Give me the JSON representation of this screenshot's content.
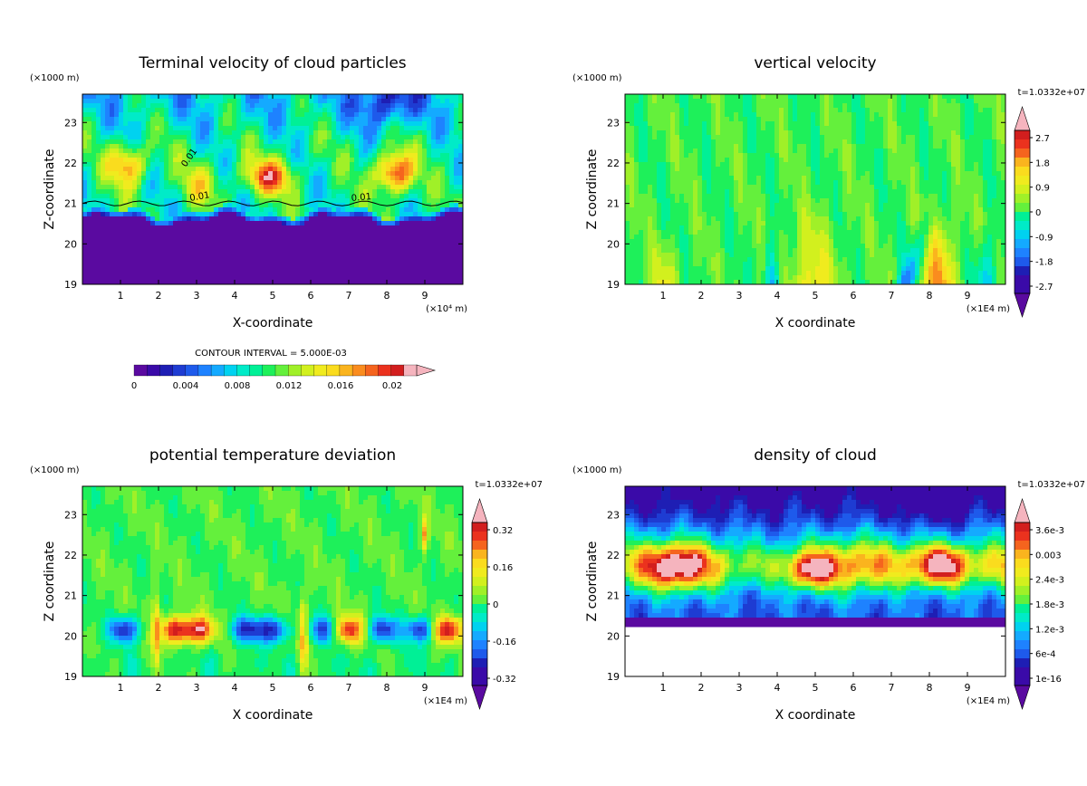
{
  "chart_data": [
    {
      "id": "p1",
      "type": "heatmap",
      "title": "Terminal velocity of cloud particles",
      "xlabel": "X-coordinate",
      "ylabel": "Z-coordinate",
      "yunit": "(×1000 m)",
      "xunit": "(×10⁴ m)",
      "xlim": [
        0,
        10
      ],
      "ylim": [
        19,
        23.7
      ],
      "xticks": [
        "1",
        "2",
        "3",
        "4",
        "5",
        "6",
        "7",
        "8",
        "9"
      ],
      "yticks": [
        "19",
        "20",
        "21",
        "22",
        "23"
      ],
      "contour_labels": [
        "0.01",
        "0.01",
        "0.01"
      ],
      "colorbar": {
        "orientation": "horizontal",
        "title": "CONTOUR INTERVAL = 5.000E-03",
        "ticks": [
          "0",
          "0.004",
          "0.008",
          "0.012",
          "0.016",
          "0.02"
        ],
        "levels": 22,
        "range": [
          0,
          0.021
        ]
      },
      "description_values": {
        "lower_layer_value": 0.0,
        "upper_layer_typical": 0.011,
        "core_max": 0.021
      }
    },
    {
      "id": "p2",
      "type": "heatmap",
      "title": "vertical velocity",
      "xlabel": "X coordinate",
      "ylabel": "Z coordinate",
      "yunit": "(×1000 m)",
      "xunit": "(×1E4 m)",
      "time_label": "t=1.0332e+07",
      "xlim": [
        0,
        10
      ],
      "ylim": [
        19,
        23.7
      ],
      "xticks": [
        "1",
        "2",
        "3",
        "4",
        "5",
        "6",
        "7",
        "8",
        "9"
      ],
      "yticks": [
        "19",
        "20",
        "21",
        "22",
        "23"
      ],
      "colorbar": {
        "orientation": "vertical",
        "ticks": [
          "2.7",
          "1.8",
          "0.9",
          "0",
          "-0.9",
          "-1.8",
          "-2.7"
        ],
        "range": [
          -3.2,
          3.2
        ]
      }
    },
    {
      "id": "p3",
      "type": "heatmap",
      "title": "potential temperature deviation",
      "xlabel": "X coordinate",
      "ylabel": "Z coordinate",
      "yunit": "(×1000 m)",
      "xunit": "(×1E4 m)",
      "time_label": "t=1.0332e+07",
      "xlim": [
        0,
        10
      ],
      "ylim": [
        19,
        23.7
      ],
      "xticks": [
        "1",
        "2",
        "3",
        "4",
        "5",
        "6",
        "7",
        "8",
        "9"
      ],
      "yticks": [
        "19",
        "20",
        "21",
        "22",
        "23"
      ],
      "colorbar": {
        "orientation": "vertical",
        "ticks": [
          "0.32",
          "0.16",
          "0",
          "-0.16",
          "-0.32"
        ],
        "range": [
          -0.4,
          0.4
        ]
      }
    },
    {
      "id": "p4",
      "type": "heatmap",
      "title": "density of cloud",
      "xlabel": "X coordinate",
      "ylabel": "Z coordinate",
      "yunit": "(×1000 m)",
      "xunit": "(×1E4 m)",
      "time_label": "t=1.0332e+07",
      "xlim": [
        0,
        10
      ],
      "ylim": [
        19,
        23.7
      ],
      "xticks": [
        "1",
        "2",
        "3",
        "4",
        "5",
        "6",
        "7",
        "8",
        "9"
      ],
      "yticks": [
        "19",
        "20",
        "21",
        "22",
        "23"
      ],
      "colorbar": {
        "orientation": "vertical",
        "ticks": [
          "3.6e-3",
          "0.003",
          "2.4e-3",
          "1.8e-3",
          "1.2e-3",
          "6e-4",
          "1e-16"
        ],
        "range": [
          0,
          0.0042
        ]
      }
    }
  ],
  "palette": [
    "#5a0aa0",
    "#3a0aa8",
    "#1e1eb4",
    "#1e3cd2",
    "#1e5aeb",
    "#1e82ff",
    "#14aaff",
    "#00d2f0",
    "#00ebc8",
    "#00f096",
    "#1ef05a",
    "#64f03c",
    "#a0f028",
    "#d2f01e",
    "#f0eb1e",
    "#fadc1e",
    "#fab41e",
    "#fa8c1e",
    "#f5641e",
    "#eb321e",
    "#d21e1e",
    "#f5b4be"
  ]
}
